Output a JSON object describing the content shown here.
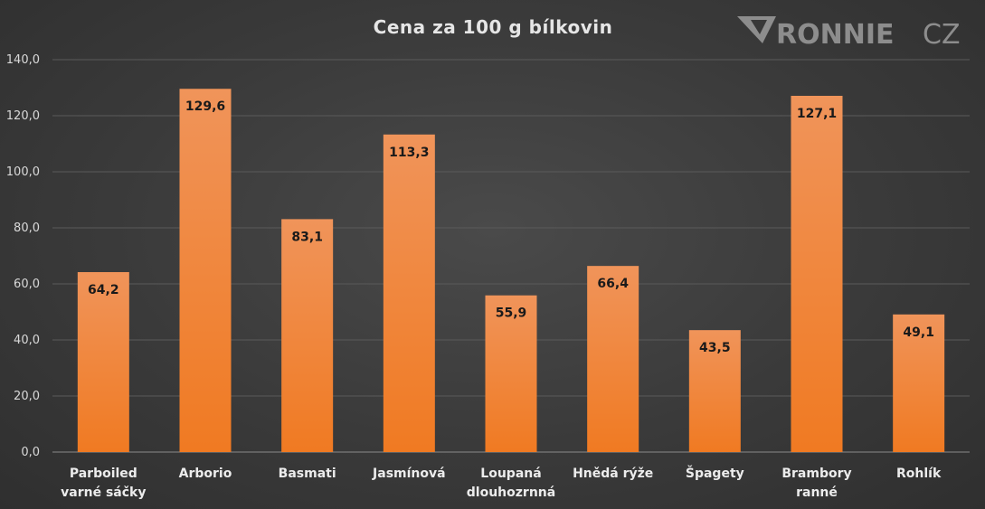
{
  "colors": {
    "background": "#3a3a3a",
    "bar_top": "#f0945a",
    "bar_bottom": "#f07a22",
    "label": "#1a1a1a",
    "logo": "#8d8d8d"
  },
  "logo": {
    "brand": "RONNIE",
    "suffix": "CZ",
    "icon": "v-chevron-icon"
  },
  "chart_data": {
    "type": "bar",
    "title": "Cena za 100 g bílkovin",
    "xlabel": "",
    "ylabel": "",
    "categories": [
      [
        "Parboiled",
        "varné sáčky"
      ],
      [
        "Arborio"
      ],
      [
        "Basmati"
      ],
      [
        "Jasmínová"
      ],
      [
        "Loupaná",
        "dlouhozrnná"
      ],
      [
        "Hnědá rýže"
      ],
      [
        "Špagety"
      ],
      [
        "Brambory",
        "ranné"
      ],
      [
        "Rohlík"
      ]
    ],
    "values": [
      64.2,
      129.6,
      83.1,
      113.3,
      55.9,
      66.4,
      43.5,
      127.1,
      49.1
    ],
    "data_labels": [
      "64,2",
      "129,6",
      "83,1",
      "113,3",
      "55,9",
      "66,4",
      "43,5",
      "127,1",
      "49,1"
    ],
    "ylim": [
      0,
      140
    ],
    "yticks": [
      0,
      20,
      40,
      60,
      80,
      100,
      120,
      140
    ],
    "ytick_labels": [
      "0,0",
      "20,0",
      "40,0",
      "60,0",
      "80,0",
      "100,0",
      "120,0",
      "140,0"
    ],
    "grid": true,
    "legend": "none"
  }
}
